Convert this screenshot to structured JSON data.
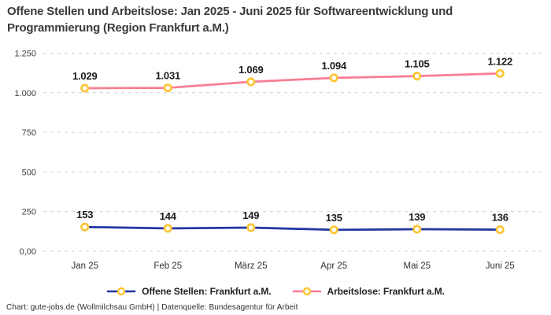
{
  "title_lines": [
    "Offene Stellen und Arbeitslose: Jan 2025 - Juni 2025 für Softwareentwicklung und",
    "Programmierung (Region Frankfurt a.M.)"
  ],
  "footer": "Chart: gute-jobs.de (Wollmilchsau GmbH) | Datenquelle: Bundesagentur für Arbeit",
  "colors": {
    "background": "#ffffff",
    "title_text": "#3a3a3a",
    "gridline": "#cfcfcf",
    "open_positions_line": "#2336a0",
    "unemployed_line": "#f97d93",
    "marker_ring": "#fcc431",
    "marker_fill": "#ffffff"
  },
  "chart_data": {
    "type": "line",
    "categories": [
      "Jan 25",
      "Feb 25",
      "März 25",
      "Apr 25",
      "Mai 25",
      "Juni 25"
    ],
    "series": [
      {
        "name": "Offene Stellen: Frankfurt a.M.",
        "color": "#2336a0",
        "values": [
          153,
          144,
          149,
          135,
          139,
          136
        ],
        "labels": [
          "153",
          "144",
          "149",
          "135",
          "139",
          "136"
        ]
      },
      {
        "name": "Arbeitslose: Frankfurt a.M.",
        "color": "#f97d93",
        "values": [
          1029,
          1031,
          1069,
          1094,
          1105,
          1122
        ],
        "labels": [
          "1.029",
          "1.031",
          "1.069",
          "1.094",
          "1.105",
          "1.122"
        ]
      }
    ],
    "y_ticks": [
      {
        "value": 0,
        "label": "0,00"
      },
      {
        "value": 250,
        "label": "250"
      },
      {
        "value": 500,
        "label": "500"
      },
      {
        "value": 750,
        "label": "750"
      },
      {
        "value": 1000,
        "label": "1.000"
      },
      {
        "value": 1250,
        "label": "1.250"
      }
    ],
    "ylim": [
      0,
      1250
    ],
    "grid": true,
    "legend_position": "bottom",
    "marker": {
      "fill": "#ffffff",
      "stroke": "#fcc431"
    }
  }
}
